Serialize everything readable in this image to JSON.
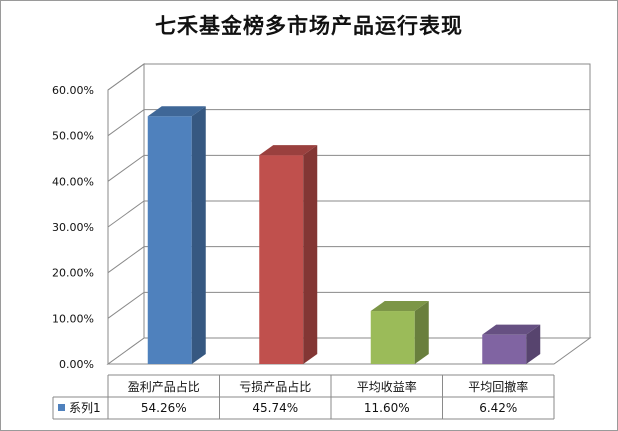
{
  "chart_data": {
    "type": "bar",
    "title": "七禾基金榜多市场产品运行表现",
    "categories": [
      "盈利产品占比",
      "亏损产品占比",
      "平均收益率",
      "平均回撤率"
    ],
    "series": [
      {
        "name": "系列1",
        "values": [
          54.26,
          45.74,
          11.6,
          6.42
        ],
        "value_labels": [
          "54.26%",
          "45.74%",
          "11.60%",
          "6.42%"
        ]
      }
    ],
    "ylim": [
      0,
      60
    ],
    "yticks": [
      "0.00%",
      "10.00%",
      "20.00%",
      "30.00%",
      "40.00%",
      "50.00%",
      "60.00%"
    ],
    "grid": true,
    "legend": "data table below chart",
    "bar_colors": [
      "#4F81BD",
      "#C0504D",
      "#9BBB59",
      "#8064A2"
    ],
    "legend_color": "#4F81BD"
  }
}
